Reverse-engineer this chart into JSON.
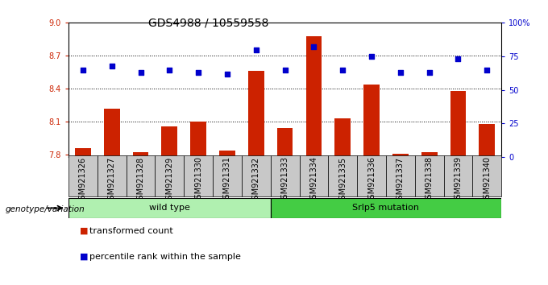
{
  "title": "GDS4988 / 10559558",
  "samples": [
    "GSM921326",
    "GSM921327",
    "GSM921328",
    "GSM921329",
    "GSM921330",
    "GSM921331",
    "GSM921332",
    "GSM921333",
    "GSM921334",
    "GSM921335",
    "GSM921336",
    "GSM921337",
    "GSM921338",
    "GSM921339",
    "GSM921340"
  ],
  "bar_values": [
    7.86,
    8.22,
    7.82,
    8.06,
    8.1,
    7.84,
    8.56,
    8.04,
    8.88,
    8.13,
    8.44,
    7.81,
    7.82,
    8.38,
    8.08
  ],
  "dot_values": [
    65,
    68,
    63,
    65,
    63,
    62,
    80,
    65,
    82,
    65,
    75,
    63,
    63,
    73,
    65
  ],
  "bar_color": "#CC2200",
  "dot_color": "#0000CC",
  "ylim_left": [
    7.78,
    9.0
  ],
  "ylim_right": [
    0,
    100
  ],
  "yticks_left": [
    7.8,
    8.1,
    8.4,
    8.7,
    9.0
  ],
  "yticks_right": [
    0,
    25,
    50,
    75,
    100
  ],
  "grid_values": [
    8.1,
    8.4,
    8.7
  ],
  "wild_type_count": 7,
  "wild_type_label": "wild type",
  "mutation_label": "Srlp5 mutation",
  "group_label": "genotype/variation",
  "legend_bar": "transformed count",
  "legend_dot": "percentile rank within the sample",
  "bg_color": "#ffffff",
  "bg_plot": "#ffffff",
  "tick_box_color": "#c8c8c8",
  "wt_color": "#b0f0b0",
  "mut_color": "#44cc44",
  "title_fontsize": 10,
  "tick_fontsize": 7,
  "legend_fontsize": 8
}
